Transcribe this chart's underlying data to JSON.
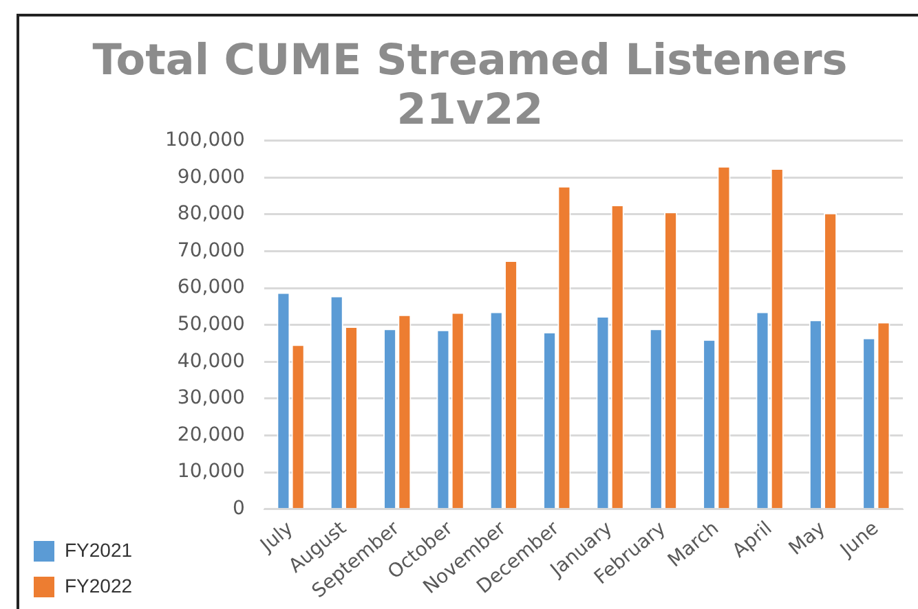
{
  "chart_data": {
    "type": "bar",
    "title": "Total CUME Streamed Listeners 21v22",
    "categories": [
      "July",
      "August",
      "September",
      "October",
      "November",
      "December",
      "January",
      "February",
      "March",
      "April",
      "May",
      "June"
    ],
    "series": [
      {
        "name": "FY2021",
        "color": "#5b9bd5",
        "values": [
          58800,
          57900,
          49000,
          48700,
          53600,
          48100,
          52400,
          49000,
          46100,
          53600,
          51400,
          46500
        ]
      },
      {
        "name": "FY2022",
        "color": "#ed7d31",
        "values": [
          44700,
          49600,
          52800,
          53400,
          67500,
          87700,
          82600,
          80700,
          93100,
          92500,
          80400,
          50800
        ]
      }
    ],
    "ylim": [
      0,
      100000
    ],
    "yticks": [
      {
        "value": 0,
        "label": "0"
      },
      {
        "value": 10000,
        "label": "10,000"
      },
      {
        "value": 20000,
        "label": "20,000"
      },
      {
        "value": 30000,
        "label": "30,000"
      },
      {
        "value": 40000,
        "label": "40,000"
      },
      {
        "value": 50000,
        "label": "50,000"
      },
      {
        "value": 60000,
        "label": "60,000"
      },
      {
        "value": 70000,
        "label": "70,000"
      },
      {
        "value": 80000,
        "label": "80,000"
      },
      {
        "value": 90000,
        "label": "90,000"
      },
      {
        "value": 100000,
        "label": "100,000"
      }
    ],
    "grid": "y",
    "legend": "bottom left"
  }
}
